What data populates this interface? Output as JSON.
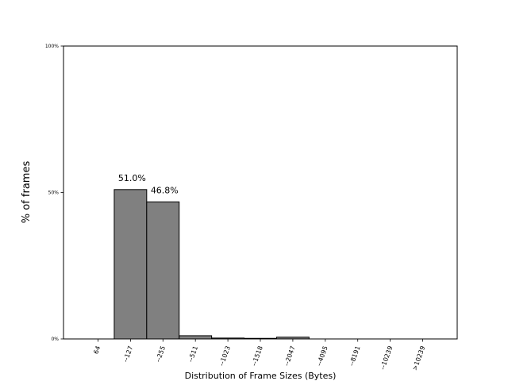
{
  "chart_data": {
    "type": "bar",
    "x_label": "Distribution of Frame Sizes (Bytes)",
    "y_label": "% of frames",
    "categories": [
      "64",
      "--127",
      "--255",
      "--511",
      "--1023",
      "--1518",
      "--2047",
      "--4095",
      "--8191",
      "--10239",
      ">10239"
    ],
    "values": [
      0,
      51.0,
      46.8,
      1.1,
      0.3,
      0.2,
      0.6,
      0,
      0,
      0,
      0
    ],
    "value_labels": [
      null,
      "51.0%",
      "46.8%",
      null,
      null,
      null,
      null,
      null,
      null,
      null,
      null
    ],
    "color": "#808080",
    "edge_color": "#000000",
    "ylim": [
      0,
      100
    ],
    "yticks": [
      {
        "value": 0,
        "label": "0%"
      },
      {
        "value": 50,
        "label": "50%"
      },
      {
        "value": 100,
        "label": "100%"
      }
    ]
  }
}
